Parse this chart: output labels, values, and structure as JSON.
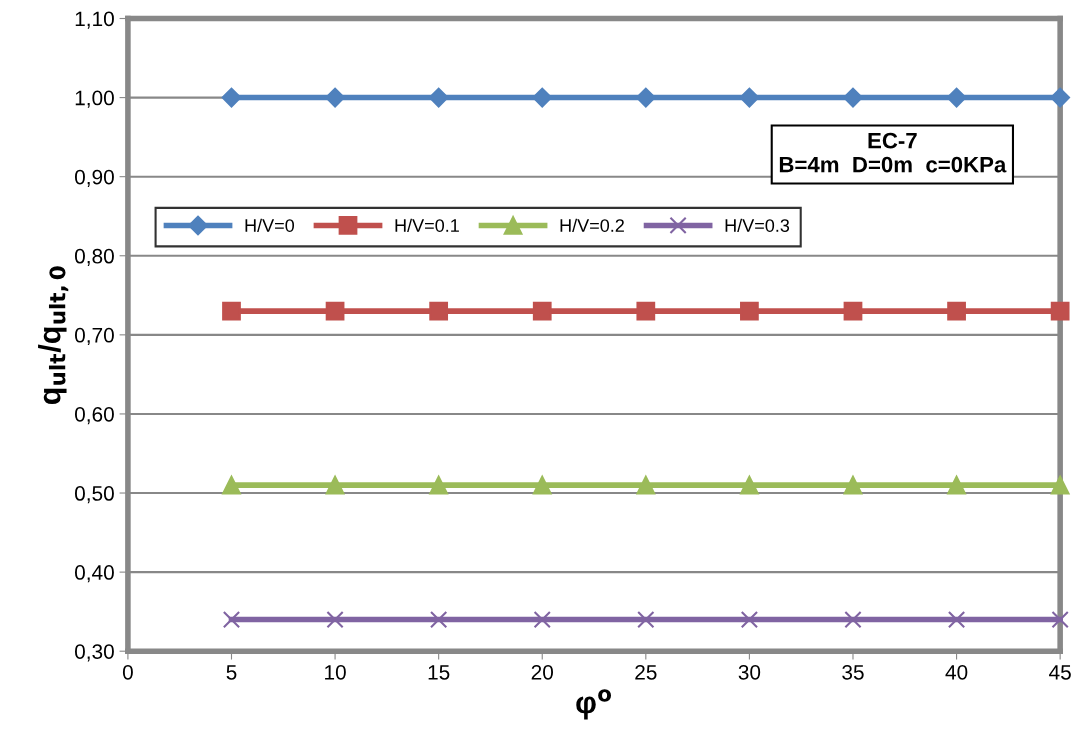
{
  "chart_data": {
    "type": "line",
    "xlabel": "φ$^{o}$",
    "ylabel": "q$_{ult}$/q$_{ult,0}$",
    "x": [
      5,
      10,
      15,
      20,
      25,
      30,
      35,
      40,
      45
    ],
    "series": [
      {
        "name": "H/V=0",
        "color": "#4f81bd",
        "marker": "diamond",
        "values": [
          1.0,
          1.0,
          1.0,
          1.0,
          1.0,
          1.0,
          1.0,
          1.0,
          1.0
        ]
      },
      {
        "name": "H/V=0.1",
        "color": "#c0504d",
        "marker": "square",
        "values": [
          0.73,
          0.73,
          0.73,
          0.73,
          0.73,
          0.73,
          0.73,
          0.73,
          0.73
        ]
      },
      {
        "name": "H/V=0.2",
        "color": "#9bbb59",
        "marker": "triangle",
        "values": [
          0.51,
          0.51,
          0.51,
          0.51,
          0.51,
          0.51,
          0.51,
          0.51,
          0.51
        ]
      },
      {
        "name": "H/V=0.3",
        "color": "#8064a2",
        "marker": "cross",
        "values": [
          0.34,
          0.34,
          0.34,
          0.34,
          0.34,
          0.34,
          0.34,
          0.34,
          0.34
        ]
      }
    ],
    "xlim": [
      0,
      45
    ],
    "xticks": [
      0,
      5,
      10,
      15,
      20,
      25,
      30,
      35,
      40,
      45
    ],
    "ylim": [
      0.3,
      1.1
    ],
    "yticks": [
      {
        "value": 0.3,
        "label": "0,30"
      },
      {
        "value": 0.4,
        "label": "0,40"
      },
      {
        "value": 0.5,
        "label": "0,50"
      },
      {
        "value": 0.6,
        "label": "0,60"
      },
      {
        "value": 0.7,
        "label": "0,70"
      },
      {
        "value": 0.8,
        "label": "0,80"
      },
      {
        "value": 0.9,
        "label": "0,90"
      },
      {
        "value": 1.0,
        "label": "1,00"
      },
      {
        "value": 1.1,
        "label": "1,10"
      }
    ],
    "grid": "y",
    "legend": "top left",
    "annotations": [
      "EC-7\nB=4m  D=0m  c=0KPa"
    ]
  }
}
